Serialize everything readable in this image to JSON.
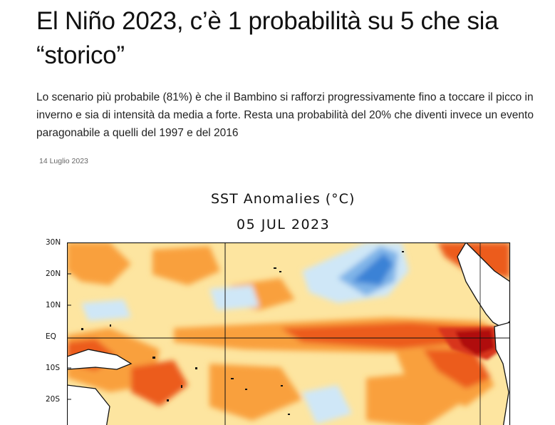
{
  "article": {
    "title": "El Niño 2023, c’è 1 probabilità su 5 che sia “storico”",
    "subtitle": "Lo scenario più probabile (81%) è che il Bambino si rafforzi progressivamente fino a toccare il picco in inverno e sia di intensità da media a forte. Resta una probabilità del 20% che diventi invece un evento paragonabile a quelli del 1997 e del 2016",
    "date": "14 Luglio 2023"
  },
  "figure": {
    "title": "SST Anomalies (°C)",
    "date": "05 JUL 2023",
    "lat_labels": [
      "30N",
      "20N",
      "10N",
      "EQ",
      "10S",
      "20S"
    ]
  },
  "colors": {
    "warm_light": "#fde5a0",
    "warm_mid": "#f9a03c",
    "warm_strong": "#ec5b1c",
    "warm_extreme": "#b01010",
    "cool_light": "#cfe7f7",
    "cool_strong": "#3b82d6"
  }
}
